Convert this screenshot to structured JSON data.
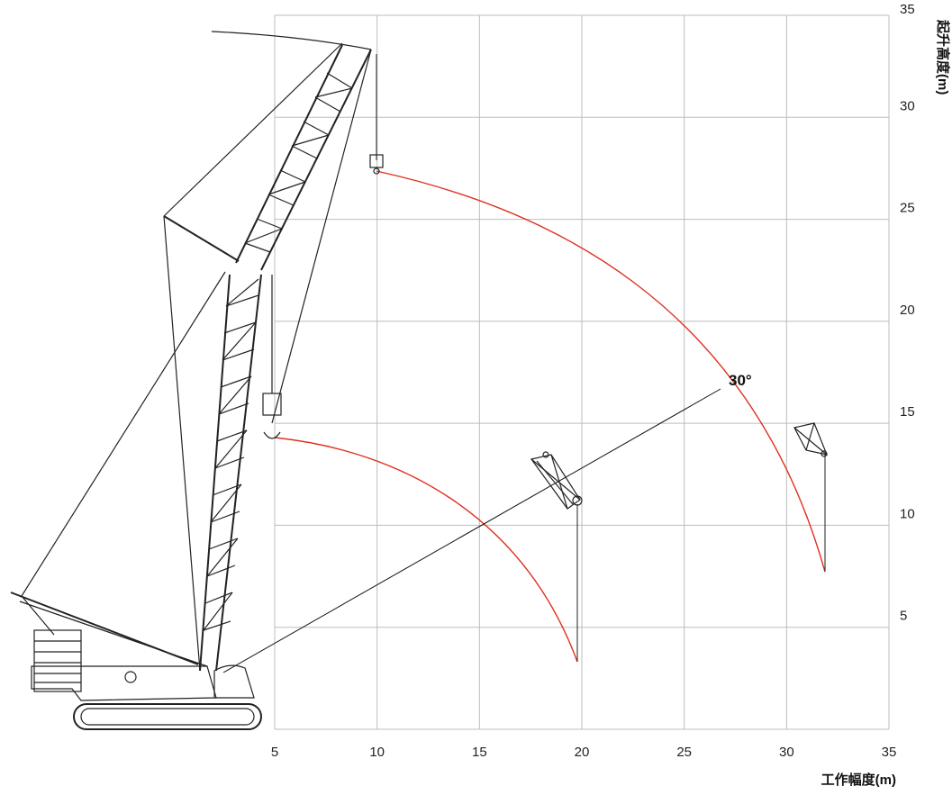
{
  "x_axis": {
    "title": "工作幅度(m)",
    "ticks": [
      5,
      10,
      15,
      20,
      25,
      30,
      35
    ],
    "range": [
      5,
      35
    ]
  },
  "y_axis": {
    "title": "起升高度(m)",
    "ticks": [
      5,
      10,
      15,
      20,
      25,
      30,
      35
    ],
    "range": [
      0,
      35
    ]
  },
  "angle_label": "30°",
  "colors": {
    "grid": "#bdbdbd",
    "arc": "#e03020",
    "crane": "#222222",
    "axis_text": "#222222"
  }
}
